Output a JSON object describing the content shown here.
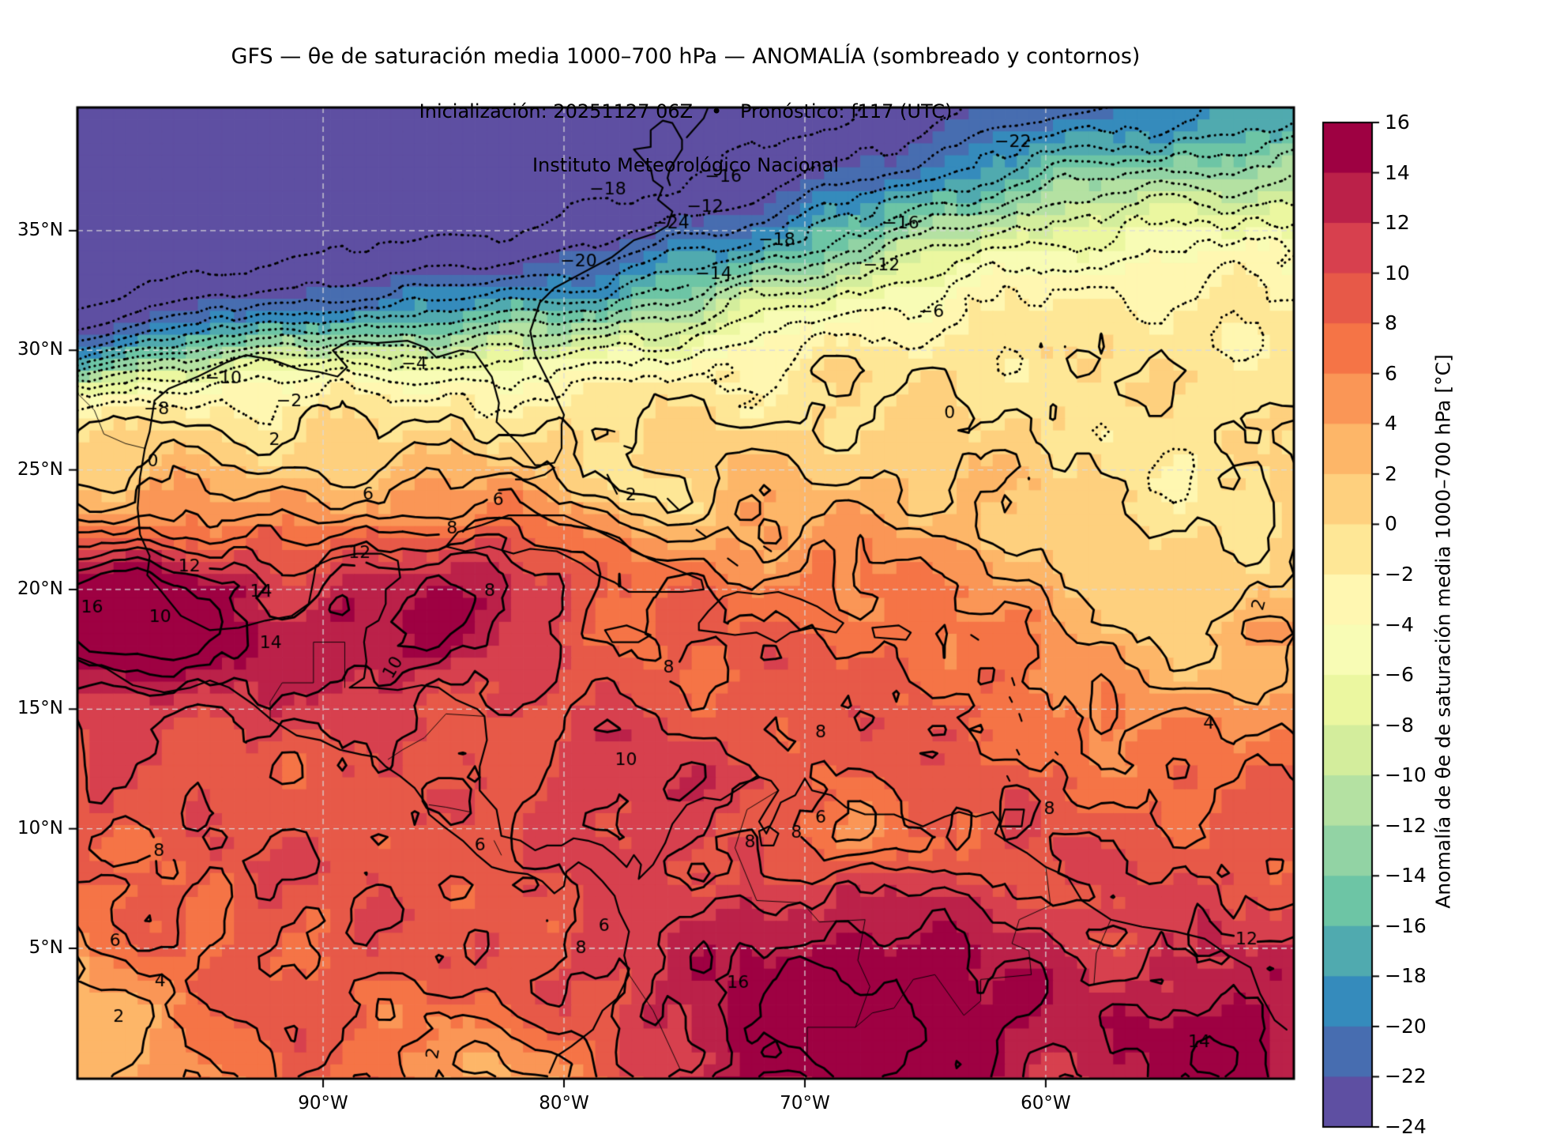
{
  "title": {
    "line1": "GFS — θe de saturación media 1000–700 hPa — ANOMALÍA (sombreado y contornos)",
    "line2": "Inicialización: 20251127 06Z   •   Pronóstico: f117 (UTC)",
    "line3": "Instituto Meteorológico Nacional"
  },
  "axes": {
    "x_ticks": [
      {
        "label": "90°W",
        "lon": -90
      },
      {
        "label": "80°W",
        "lon": -80
      },
      {
        "label": "70°W",
        "lon": -70
      },
      {
        "label": "60°W",
        "lon": -60
      }
    ],
    "y_ticks": [
      {
        "label": "35°N",
        "lat": 35
      },
      {
        "label": "30°N",
        "lat": 30
      },
      {
        "label": "25°N",
        "lat": 25
      },
      {
        "label": "20°N",
        "lat": 20
      },
      {
        "label": "15°N",
        "lat": 15
      },
      {
        "label": "10°N",
        "lat": 10
      },
      {
        "label": "5°N",
        "lat": 5
      }
    ]
  },
  "map": {
    "lon_min": -100.2,
    "lon_max": -49.7,
    "lat_min": -0.45,
    "lat_max": 40.15,
    "grid_lons": [
      -90,
      -80,
      -70,
      -60
    ],
    "grid_lats": [
      5,
      10,
      15,
      20,
      25,
      30,
      35
    ],
    "gridline_color": "#d9d9d9",
    "coast_color": "#000000"
  },
  "colorbar": {
    "title": "Anomalía de θe de saturación media 1000–700 hPa [°C]",
    "vmin": -24,
    "vmax": 16,
    "step": 2,
    "ticks": [
      {
        "v": 16,
        "label": "16"
      },
      {
        "v": 14,
        "label": "14"
      },
      {
        "v": 12,
        "label": "12"
      },
      {
        "v": 10,
        "label": "10"
      },
      {
        "v": 8,
        "label": "8"
      },
      {
        "v": 6,
        "label": "6"
      },
      {
        "v": 4,
        "label": "4"
      },
      {
        "v": 2,
        "label": "2"
      },
      {
        "v": 0,
        "label": "0"
      },
      {
        "v": -2,
        "label": "−2"
      },
      {
        "v": -4,
        "label": "−4"
      },
      {
        "v": -6,
        "label": "−6"
      },
      {
        "v": -8,
        "label": "−8"
      },
      {
        "v": -10,
        "label": "−10"
      },
      {
        "v": -12,
        "label": "−12"
      },
      {
        "v": -14,
        "label": "−14"
      },
      {
        "v": -16,
        "label": "−16"
      },
      {
        "v": -18,
        "label": "−18"
      },
      {
        "v": -20,
        "label": "−20"
      },
      {
        "v": -22,
        "label": "−22"
      },
      {
        "v": -24,
        "label": "−24"
      }
    ],
    "anchors": [
      "#5e4fa2",
      "#3288bd",
      "#66c2a5",
      "#abdda4",
      "#e6f598",
      "#ffffbf",
      "#fee08b",
      "#fdae61",
      "#f46d43",
      "#d53e4f",
      "#9e0142"
    ]
  },
  "chart_data": {
    "type": "heatmap",
    "title": "GFS — θe de saturación media 1000–700 hPa — ANOMALÍA (sombreado y contornos)",
    "units": "°C",
    "x_axis": {
      "ticks": [
        "90°W",
        "80°W",
        "70°W",
        "60°W"
      ],
      "range_lon": [
        -100.2,
        -49.7
      ]
    },
    "y_axis": {
      "ticks": [
        "35°N",
        "30°N",
        "25°N",
        "20°N",
        "15°N",
        "10°N",
        "5°N"
      ],
      "range_lat": [
        -0.45,
        40.15
      ]
    },
    "levels": {
      "min": -24,
      "max": 16,
      "step": 2
    },
    "negative_contour_style": "dotted",
    "positive_contour_style": "solid",
    "legend_position": "right-colorbar",
    "grid": "dashed 5° lat / 10° lon",
    "contour_labels": [
      {
        "v": -24,
        "x": 0.488,
        "y": 0.12
      },
      {
        "v": -22,
        "x": 0.769,
        "y": 0.036
      },
      {
        "v": -20,
        "x": 0.412,
        "y": 0.159
      },
      {
        "v": -18,
        "x": 0.575,
        "y": 0.137
      },
      {
        "v": -18,
        "x": 0.436,
        "y": 0.085
      },
      {
        "v": -16,
        "x": 0.677,
        "y": 0.12
      },
      {
        "v": -16,
        "x": 0.531,
        "y": 0.072
      },
      {
        "v": -14,
        "x": 0.523,
        "y": 0.172
      },
      {
        "v": -12,
        "x": 0.661,
        "y": 0.163
      },
      {
        "v": -12,
        "x": 0.516,
        "y": 0.103
      },
      {
        "v": -10,
        "x": 0.12,
        "y": 0.279
      },
      {
        "v": -8,
        "x": 0.065,
        "y": 0.311
      },
      {
        "v": -6,
        "x": 0.702,
        "y": 0.211
      },
      {
        "v": -4,
        "x": 0.277,
        "y": 0.265
      },
      {
        "v": -2,
        "x": 0.174,
        "y": 0.303
      },
      {
        "v": 0,
        "x": 0.062,
        "y": 0.365
      },
      {
        "v": 0,
        "x": 0.717,
        "y": 0.315
      },
      {
        "v": 2,
        "x": 0.162,
        "y": 0.343
      },
      {
        "v": 2,
        "x": 0.455,
        "y": 0.4
      },
      {
        "v": 2,
        "x": 0.972,
        "y": 0.512,
        "r": -75
      },
      {
        "v": 2,
        "x": 0.034,
        "y": 0.937
      },
      {
        "v": 2,
        "x": 0.293,
        "y": 0.974,
        "r": -80
      },
      {
        "v": 4,
        "x": 0.93,
        "y": 0.635
      },
      {
        "v": 4,
        "x": 0.068,
        "y": 0.9
      },
      {
        "v": 6,
        "x": 0.239,
        "y": 0.399
      },
      {
        "v": 6,
        "x": 0.346,
        "y": 0.405
      },
      {
        "v": 6,
        "x": 0.611,
        "y": 0.732
      },
      {
        "v": 6,
        "x": 0.331,
        "y": 0.76
      },
      {
        "v": 6,
        "x": 0.433,
        "y": 0.843
      },
      {
        "v": 6,
        "x": 0.031,
        "y": 0.859
      },
      {
        "v": 8,
        "x": 0.308,
        "y": 0.434
      },
      {
        "v": 8,
        "x": 0.486,
        "y": 0.577
      },
      {
        "v": 8,
        "x": 0.611,
        "y": 0.644
      },
      {
        "v": 8,
        "x": 0.553,
        "y": 0.757
      },
      {
        "v": 8,
        "x": 0.339,
        "y": 0.498
      },
      {
        "v": 8,
        "x": 0.591,
        "y": 0.747
      },
      {
        "v": 8,
        "x": 0.414,
        "y": 0.866
      },
      {
        "v": 8,
        "x": 0.799,
        "y": 0.723
      },
      {
        "v": 8,
        "x": 0.067,
        "y": 0.766
      },
      {
        "v": 10,
        "x": 0.068,
        "y": 0.525
      },
      {
        "v": 10,
        "x": 0.451,
        "y": 0.672
      },
      {
        "v": 10,
        "x": 0.26,
        "y": 0.577,
        "r": -60
      },
      {
        "v": 12,
        "x": 0.092,
        "y": 0.473
      },
      {
        "v": 12,
        "x": 0.961,
        "y": 0.857
      },
      {
        "v": 12,
        "x": 0.232,
        "y": 0.459
      },
      {
        "v": 14,
        "x": 0.151,
        "y": 0.499
      },
      {
        "v": 14,
        "x": 0.159,
        "y": 0.552
      },
      {
        "v": 14,
        "x": 0.922,
        "y": 0.963
      },
      {
        "v": 16,
        "x": 0.012,
        "y": 0.515
      },
      {
        "v": 16,
        "x": 0.543,
        "y": 0.902
      }
    ]
  }
}
